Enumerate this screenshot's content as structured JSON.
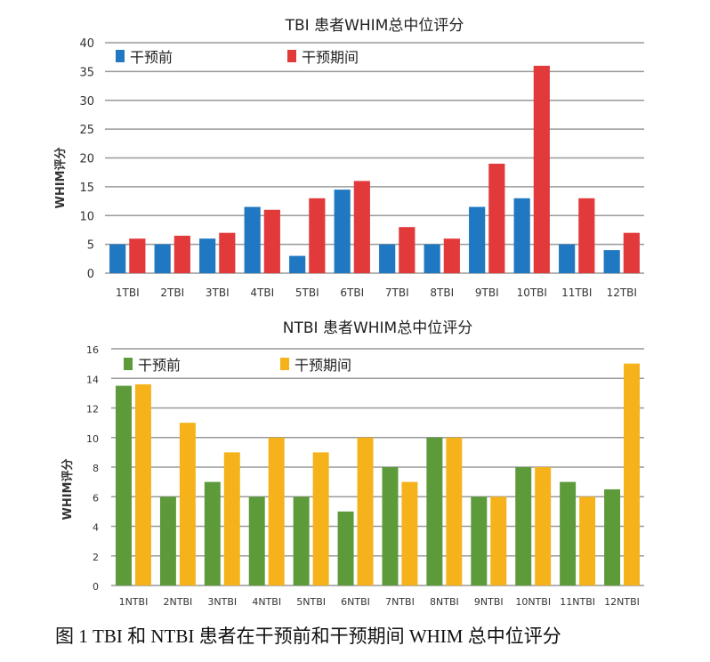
{
  "chart_data": [
    {
      "type": "bar",
      "title": "TBI 患者WHIM总中位评分",
      "xlabel": "",
      "ylabel": "WHIM评分",
      "ylim": [
        0,
        40
      ],
      "yticks": [
        0,
        5,
        10,
        15,
        20,
        25,
        30,
        35,
        40
      ],
      "grid": true,
      "legend": "top-left",
      "categories": [
        "1TBI",
        "2TBI",
        "3TBI",
        "4TBI",
        "5TBI",
        "6TBI",
        "7TBI",
        "8TBI",
        "9TBI",
        "10TBI",
        "11TBI",
        "12TBI"
      ],
      "series": [
        {
          "name": "干预前",
          "color": "#1f78c1",
          "values": [
            5,
            5,
            6,
            11.5,
            3,
            14.5,
            5,
            5,
            11.5,
            13,
            5,
            4
          ]
        },
        {
          "name": "干预期间",
          "color": "#e23a3a",
          "values": [
            6,
            6.5,
            7,
            11,
            13,
            16,
            8,
            6,
            19,
            36,
            13,
            7
          ]
        }
      ]
    },
    {
      "type": "bar",
      "title": "NTBI 患者WHIM总中位评分",
      "xlabel": "",
      "ylabel": "WHIM评分",
      "ylim": [
        0,
        16
      ],
      "yticks": [
        0,
        2,
        4,
        6,
        8,
        10,
        12,
        14,
        16
      ],
      "grid": true,
      "legend": "top-left",
      "categories": [
        "1NTBI",
        "2NTBI",
        "3NTBI",
        "4NTBI",
        "5NTBI",
        "6NTBI",
        "7NTBI",
        "8NTBI",
        "9NTBI",
        "10NTBI",
        "11NTBI",
        "12NTBI"
      ],
      "series": [
        {
          "name": "干预前",
          "color": "#5c9a3a",
          "values": [
            13.5,
            6,
            7,
            6,
            6,
            5,
            8,
            10,
            6,
            8,
            7,
            6.5
          ]
        },
        {
          "name": "干预期间",
          "color": "#f6b21b",
          "values": [
            13.6,
            11,
            9,
            10,
            9,
            10,
            7,
            10,
            6,
            8,
            6,
            15
          ]
        }
      ]
    }
  ],
  "caption": "图 1 TBI 和 NTBI 患者在干预前和干预期间 WHIM 总中位评分"
}
